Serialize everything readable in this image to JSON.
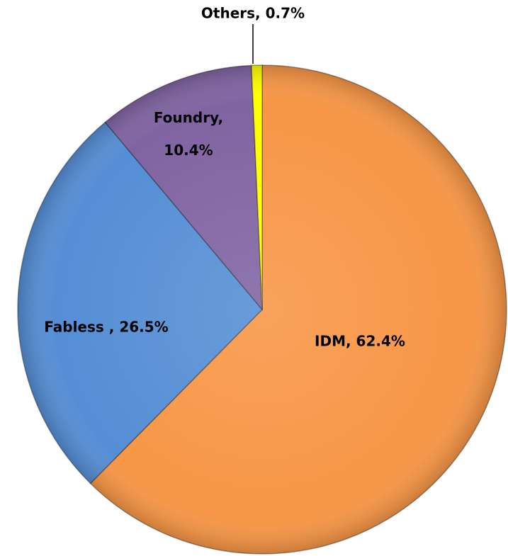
{
  "chart_data": {
    "type": "pie",
    "values": [
      62.4,
      26.5,
      10.4,
      0.7
    ],
    "value_labels": [
      "IDM, 62.4%",
      "Fabless , 26.5%",
      "Foundry, 10.4%",
      "Others, 0.7%"
    ],
    "colors": [
      "#f79646",
      "#558ed5",
      "#8064a2",
      "#ffff00"
    ]
  }
}
